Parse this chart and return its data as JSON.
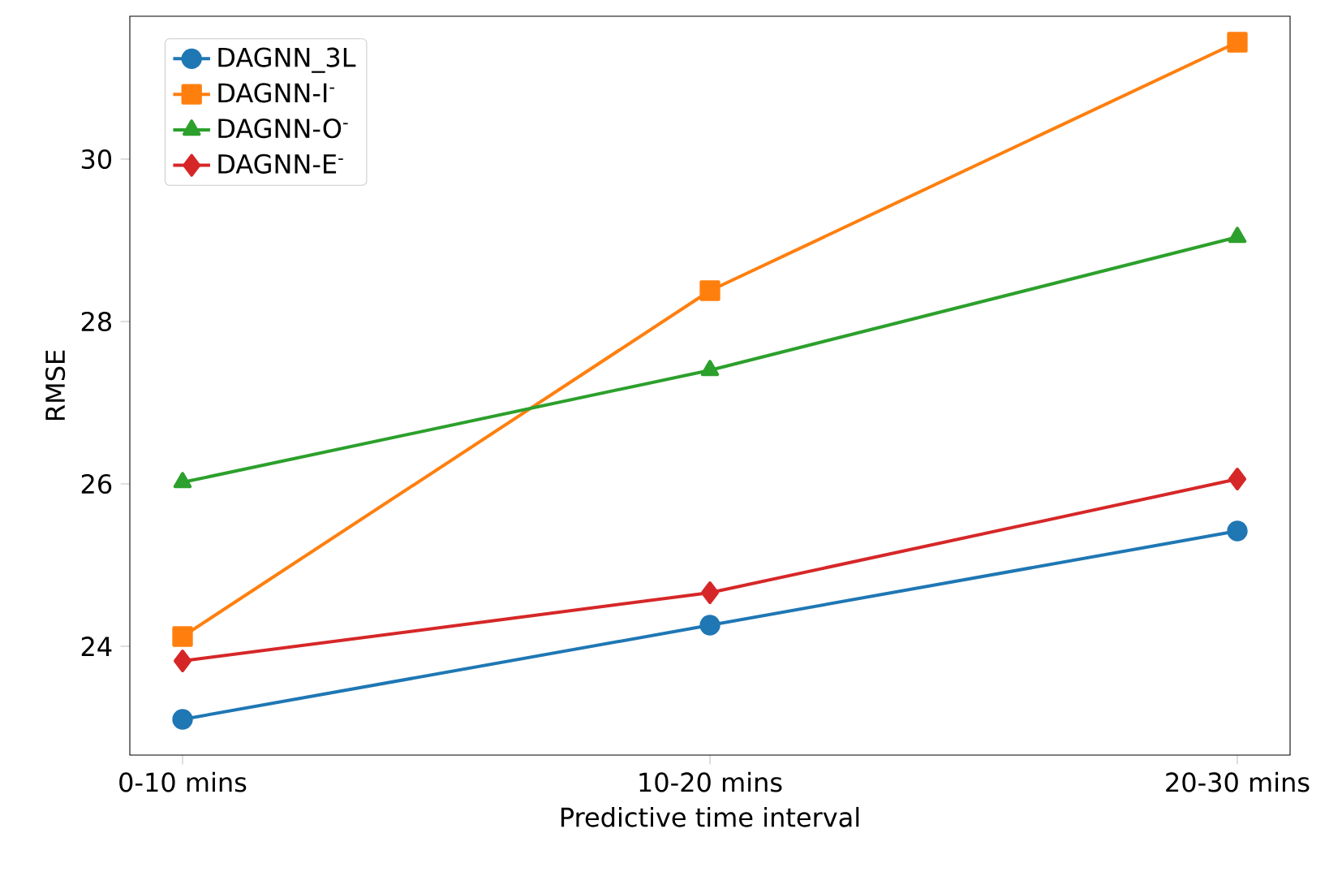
{
  "chart_data": {
    "type": "line",
    "xlabel": "Predictive time interval",
    "ylabel": "RMSE",
    "categories": [
      "0-10 mins",
      "10-20 mins",
      "20-30 mins"
    ],
    "series": [
      {
        "name": "DAGNN_3L",
        "color": "#1f77b4",
        "marker": "circle",
        "values": [
          23.1,
          24.26,
          25.42
        ]
      },
      {
        "name": "DAGNN-I$^{-}$",
        "color": "#ff7f0e",
        "marker": "square",
        "values": [
          24.12,
          28.38,
          31.44
        ]
      },
      {
        "name": "DAGNN-O$^{-}$",
        "color": "#2ca02c",
        "marker": "triangle",
        "values": [
          26.02,
          27.4,
          29.04
        ]
      },
      {
        "name": "DAGNN-E$^{-}$",
        "color": "#d62728",
        "marker": "diamond",
        "values": [
          23.82,
          24.66,
          26.06
        ]
      }
    ],
    "ylim": [
      22.66,
      31.76
    ],
    "yticks": [
      24,
      26,
      28,
      30
    ],
    "legend": "top left",
    "grid": false,
    "line_style": "solid"
  }
}
